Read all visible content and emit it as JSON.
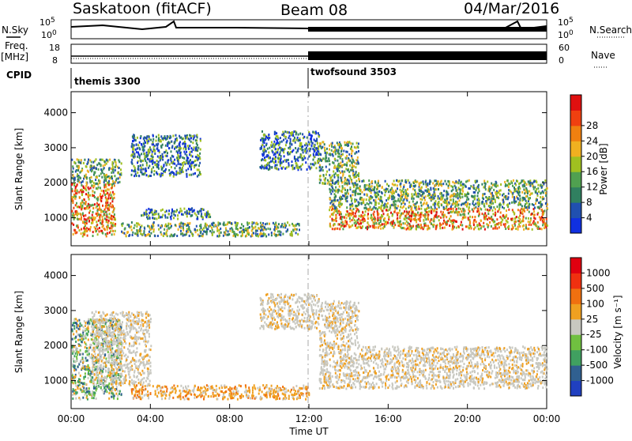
{
  "header": {
    "station": "Saskatoon (fitACF)",
    "beam": "Beam 08",
    "date": "04/Mar/2016"
  },
  "colors": {
    "sky_bg": "#ffffff",
    "velocity_gray": "#c8c8c0",
    "velocity_orange": "#f0a020",
    "velocity_green": "#40a040",
    "power_red": "#e02010",
    "power_orange": "#f08020",
    "power_green": "#60a060",
    "power_blue": "#2030c0"
  },
  "strips": {
    "left_labels": [
      "N.Sky",
      "Freq.",
      "[MHz]",
      "CPID"
    ],
    "right_labels": [
      "N.Search",
      "Nave"
    ],
    "sky_ticks_left": [
      "10^5",
      "10^0"
    ],
    "sky_ticks_right": [
      "10^5",
      "10^0"
    ],
    "freq_ticks": [
      "18",
      "8"
    ],
    "nave_ticks": [
      "60",
      "0"
    ],
    "cpid_left": "themis 3300",
    "cpid_right": "twofsound 3503"
  },
  "chart_data": [
    {
      "type": "heatmap",
      "panel": "power",
      "title": "",
      "xlabel": "",
      "ylabel": "Slant Range [km]",
      "ylim": [
        200,
        4600
      ],
      "y_ticks": [
        1000,
        2000,
        3000,
        4000
      ],
      "xlim": [
        0,
        24
      ],
      "colorbar": {
        "label": "Power [dB]",
        "ticks": [
          "4",
          "8",
          "12",
          "16",
          "20",
          "24",
          "28"
        ],
        "colors": [
          "#1030e0",
          "#2050b0",
          "#308060",
          "#50a050",
          "#a0c020",
          "#f0b020",
          "#f08010",
          "#f04010",
          "#e01010"
        ]
      },
      "regions": [
        {
          "t0": 0.0,
          "t1": 2.2,
          "r0": 500,
          "r1": 2000,
          "level": "high"
        },
        {
          "t0": 0.0,
          "t1": 2.5,
          "r0": 2000,
          "r1": 2700,
          "level": "mid"
        },
        {
          "t0": 2.5,
          "t1": 11.5,
          "r0": 500,
          "r1": 900,
          "level": "mid"
        },
        {
          "t0": 3.5,
          "t1": 7.0,
          "r0": 1000,
          "r1": 1300,
          "level": "low"
        },
        {
          "t0": 3.0,
          "t1": 6.5,
          "r0": 2200,
          "r1": 3400,
          "level": "low"
        },
        {
          "t0": 9.5,
          "t1": 12.5,
          "r0": 2400,
          "r1": 3500,
          "level": "low"
        },
        {
          "t0": 13.0,
          "t1": 24.0,
          "r0": 700,
          "r1": 1300,
          "level": "high"
        },
        {
          "t0": 13.0,
          "t1": 24.0,
          "r0": 1300,
          "r1": 2100,
          "level": "mid"
        },
        {
          "t0": 12.5,
          "t1": 14.5,
          "r0": 2000,
          "r1": 3200,
          "level": "mid"
        }
      ]
    },
    {
      "type": "heatmap",
      "panel": "velocity",
      "title": "",
      "xlabel": "Time UT",
      "ylabel": "Slant Range [km]",
      "ylim": [
        200,
        4600
      ],
      "y_ticks": [
        1000,
        2000,
        3000,
        4000
      ],
      "xlim": [
        0,
        24
      ],
      "x_ticks": [
        "00:00",
        "04:00",
        "08:00",
        "12:00",
        "16:00",
        "20:00",
        "00:00"
      ],
      "colorbar": {
        "label": "Velocity [m s⁻¹]",
        "ticks": [
          "1000",
          "500",
          "100",
          "25",
          "-25",
          "-100",
          "-500",
          "-1000"
        ],
        "colors": [
          "#2040c0",
          "#306090",
          "#40a060",
          "#70c040",
          "#c8c8c0",
          "#f0a020",
          "#f07010",
          "#f03010",
          "#e00010"
        ]
      },
      "regions": [
        {
          "t0": 0.0,
          "t1": 2.5,
          "r0": 500,
          "r1": 2800,
          "level": "green"
        },
        {
          "t0": 1.0,
          "t1": 4.0,
          "r0": 900,
          "r1": 3000,
          "level": "gray"
        },
        {
          "t0": 3.0,
          "t1": 12.0,
          "r0": 500,
          "r1": 900,
          "level": "orange"
        },
        {
          "t0": 9.5,
          "t1": 12.5,
          "r0": 2500,
          "r1": 3500,
          "level": "gray"
        },
        {
          "t0": 12.5,
          "t1": 24.0,
          "r0": 800,
          "r1": 2000,
          "level": "gray"
        },
        {
          "t0": 12.5,
          "t1": 14.5,
          "r0": 2000,
          "r1": 3300,
          "level": "gray"
        }
      ]
    }
  ]
}
